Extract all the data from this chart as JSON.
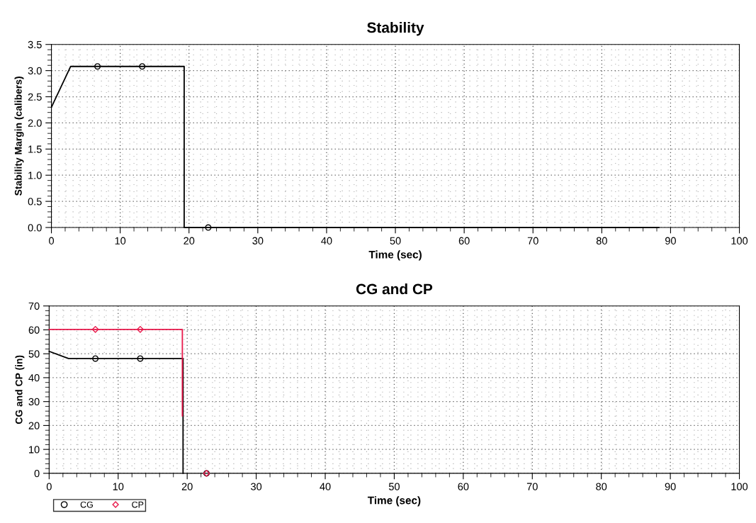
{
  "chart_data": [
    {
      "type": "line",
      "title": "Stability",
      "xlabel": "Time (sec)",
      "ylabel": "Stability Margin (calibers)",
      "xlim": [
        0,
        100
      ],
      "xticks": [
        0,
        10,
        20,
        30,
        40,
        50,
        60,
        70,
        80,
        90,
        100
      ],
      "ylim": [
        0,
        3.5
      ],
      "yticks": [
        {
          "value": 0,
          "label": "0.0"
        },
        {
          "value": 0.5,
          "label": "0.5"
        },
        {
          "value": 1,
          "label": "1.0"
        },
        {
          "value": 1.5,
          "label": "1.5"
        },
        {
          "value": 2,
          "label": "2.0"
        },
        {
          "value": 2.5,
          "label": "2.5"
        },
        {
          "value": 3,
          "label": "3.0"
        },
        {
          "value": 3.5,
          "label": "3.5"
        }
      ],
      "grid": true,
      "legend": false,
      "series": [
        {
          "color": "#000000",
          "marker": "none",
          "x": [
            0,
            2.8,
            19.3,
            19.3,
            88.3
          ],
          "values": [
            2.3,
            3.08,
            3.08,
            0,
            0
          ]
        },
        {
          "type": "scatter",
          "color": "#000000",
          "marker": "circle",
          "x": [
            6.7,
            13.2,
            22.8
          ],
          "values": [
            3.08,
            3.08,
            0
          ]
        }
      ]
    },
    {
      "type": "line",
      "title": "CG and CP",
      "xlabel": "Time (sec)",
      "ylabel": "CG and CP (in)",
      "xlim": [
        0,
        100
      ],
      "xticks": [
        0,
        10,
        20,
        30,
        40,
        50,
        60,
        70,
        80,
        90,
        100
      ],
      "ylim": [
        0,
        70
      ],
      "yticks": [
        0,
        10,
        20,
        30,
        40,
        50,
        60,
        70
      ],
      "grid": true,
      "legend": "bottom left",
      "series": [
        {
          "color": "#000000",
          "marker": "none",
          "x": [
            0,
            2.8,
            19.4,
            19.4
          ],
          "values": [
            51,
            48,
            48,
            0
          ]
        },
        {
          "color": "#e8194b",
          "marker": "none",
          "x": [
            0,
            19.3,
            19.3
          ],
          "values": [
            60.2,
            60.2,
            24
          ]
        },
        {
          "type": "scatter",
          "name": "CG",
          "color": "#000000",
          "marker": "circle",
          "x": [
            6.7,
            13.2,
            22.8
          ],
          "values": [
            48,
            48,
            0
          ]
        },
        {
          "type": "scatter",
          "name": "CP",
          "color": "#e8194b",
          "marker": "diamond",
          "x": [
            6.7,
            13.2,
            22.8
          ],
          "values": [
            60.2,
            60.2,
            0
          ]
        }
      ]
    }
  ]
}
